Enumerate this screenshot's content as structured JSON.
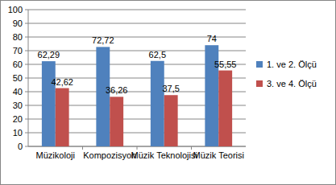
{
  "chart_data": {
    "type": "bar",
    "categories": [
      "Müzikoloji",
      "Kompozisyon",
      "Müzik Teknolojisi",
      "Müzik Teorisi"
    ],
    "series": [
      {
        "name": "1. ve 2. Ölçü",
        "color": "#4f81bd",
        "values": [
          62.29,
          72.72,
          62.5,
          74
        ],
        "value_labels": [
          "62,29",
          "72,72",
          "62,5",
          "74"
        ]
      },
      {
        "name": "3. ve 4. Ölçü",
        "color": "#c0504d",
        "values": [
          42.62,
          36.26,
          37.5,
          55.55
        ],
        "value_labels": [
          "42,62",
          "36,26",
          "37,5",
          "55,55"
        ]
      }
    ],
    "ylim": [
      0,
      100
    ],
    "yticks": [
      0,
      10,
      20,
      30,
      40,
      50,
      60,
      70,
      80,
      90,
      100
    ],
    "grid": true,
    "legend": "right",
    "data_labels": true
  }
}
